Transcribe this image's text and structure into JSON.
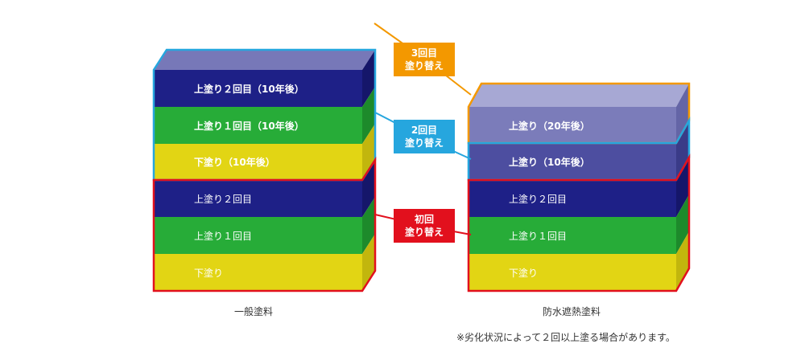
{
  "colors": {
    "navy": "#1e2087",
    "green": "#27ac38",
    "yellow": "#e2d514",
    "purple_light": "#7b7cba",
    "purple_mid": "#4d4ea0",
    "cyan": "#26a6de",
    "red": "#e2101d",
    "orange": "#f39800"
  },
  "left_stack": {
    "caption": "一般塗料",
    "layers": [
      {
        "label": "上塗り２回目（10年後）",
        "color": "navy",
        "bold": true
      },
      {
        "label": "上塗り１回目（10年後）",
        "color": "green",
        "bold": true
      },
      {
        "label": "下塗り（10年後）",
        "color": "yellow",
        "bold": true
      },
      {
        "label": "上塗り２回目",
        "color": "navy",
        "bold": false
      },
      {
        "label": "上塗り１回目",
        "color": "green",
        "bold": false
      },
      {
        "label": "下塗り",
        "color": "yellow",
        "bold": false
      }
    ]
  },
  "right_stack": {
    "caption": "防水遮熱塗料",
    "layers": [
      {
        "label": "上塗り（20年後）",
        "color": "purple_light",
        "bold": true
      },
      {
        "label": "上塗り（10年後）",
        "color": "purple_mid",
        "bold": true
      },
      {
        "label": "上塗り２回目",
        "color": "navy",
        "bold": false
      },
      {
        "label": "上塗り１回目",
        "color": "green",
        "bold": false
      },
      {
        "label": "下塗り",
        "color": "yellow",
        "bold": false
      }
    ]
  },
  "tags": {
    "third": {
      "line1": "3回目",
      "line2": "塗り替え",
      "color": "orange"
    },
    "second": {
      "line1": "2回目",
      "line2": "塗り替え",
      "color": "cyan"
    },
    "first": {
      "line1": "初回",
      "line2": "塗り替え",
      "color": "red"
    }
  },
  "note": "※劣化状況によって２回以上塗る場合があります。"
}
